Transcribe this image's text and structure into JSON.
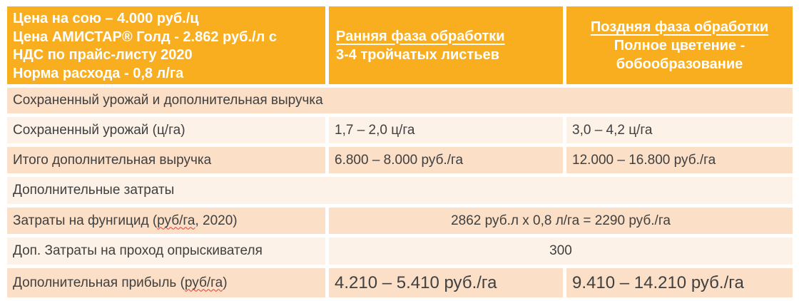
{
  "colors": {
    "header_bg": "#F9AE1F",
    "row_peach": "#FBDFC7",
    "row_cream": "#FDF2E7",
    "header_text": "#FFFFFF",
    "body_text": "#404040",
    "spellcheck_red": "#E03C31",
    "page_bg": "#FFFFFF"
  },
  "table": {
    "header": {
      "info": "Цена на сою – 4.000 руб./ц\nЦена АМИСТАР® Голд  - 2.862 руб./л с\nНДС по прайс-листу 2020\nНорма расхода  - 0,8 л/га",
      "early": {
        "title": "Ранняя фаза обработки",
        "subtitle": "3-4 тройчатых листьев"
      },
      "late": {
        "title": "Поздняя фаза обработки",
        "subtitle": "Полное цветение -\nбобообразование"
      }
    },
    "rows": [
      {
        "label": "Сохраненный урожай и дополнительная выручка"
      },
      {
        "label": "Сохраненный урожай (ц/га)",
        "early": "1,7 – 2,0 ц/га",
        "late": "3,0 – 4,2 ц/га"
      },
      {
        "label": "Итого дополнительная выручка",
        "early": "6.800 – 8.000 руб./га",
        "late": "12.000 – 16.800 руб./га"
      },
      {
        "label": "Дополнительные затраты"
      },
      {
        "label_pre": "Затраты на фунгицид (",
        "label_sic": "руб/га",
        "label_post": ", 2020)",
        "value": "2862 руб.л х 0,8 л/га = 2290 руб./га"
      },
      {
        "label": "Доп. Затраты на проход опрыскивателя",
        "value": "300"
      },
      {
        "label_pre": "Дополнительная прибыль (",
        "label_sic": "руб/га",
        "label_post": ")",
        "early": "4.210 – 5.410 руб./га",
        "late": "9.410 – 14.210 руб./га"
      }
    ]
  }
}
